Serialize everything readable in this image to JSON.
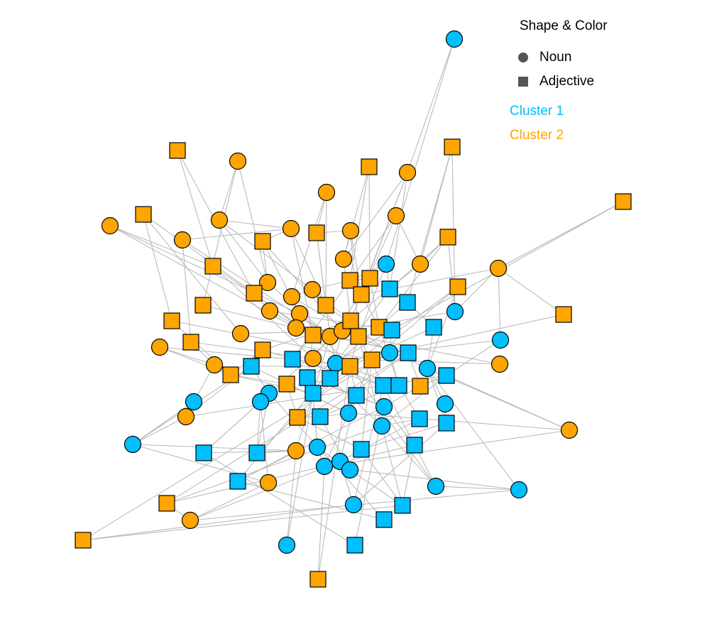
{
  "legend": {
    "title": "Shape & Color",
    "shapes": [
      {
        "label": "Noun",
        "shape": "circle"
      },
      {
        "label": "Adjective",
        "shape": "square"
      }
    ],
    "clusters": [
      {
        "label": "Cluster 1",
        "color": "#00BFFF"
      },
      {
        "label": "Cluster 2",
        "color": "#FFA500"
      }
    ],
    "symbol_color": "#555555"
  },
  "colors": {
    "edge": "#BBBBBB",
    "node_stroke": "#000000",
    "cluster_1": "#00BFFF",
    "cluster_2": "#FFA500"
  }
}
